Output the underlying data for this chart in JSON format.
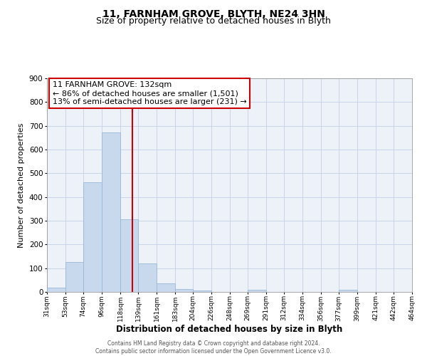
{
  "title": "11, FARNHAM GROVE, BLYTH, NE24 3HN",
  "subtitle": "Size of property relative to detached houses in Blyth",
  "xlabel": "Distribution of detached houses by size in Blyth",
  "ylabel": "Number of detached properties",
  "bar_edges": [
    31,
    53,
    74,
    96,
    118,
    139,
    161,
    183,
    204,
    226,
    248,
    269,
    291,
    312,
    334,
    356,
    377,
    399,
    421,
    442,
    464
  ],
  "bar_values": [
    18,
    127,
    463,
    672,
    305,
    120,
    37,
    13,
    5,
    0,
    0,
    8,
    0,
    0,
    0,
    0,
    8,
    0,
    0,
    0
  ],
  "bar_color": "#c8d8ed",
  "bar_edge_color": "#9ab8d8",
  "vline_x": 132,
  "vline_color": "#cc0000",
  "annotation_line1": "11 FARNHAM GROVE: 132sqm",
  "annotation_line2": "← 86% of detached houses are smaller (1,501)",
  "annotation_line3": "13% of semi-detached houses are larger (231) →",
  "ylim": [
    0,
    900
  ],
  "yticks": [
    0,
    100,
    200,
    300,
    400,
    500,
    600,
    700,
    800,
    900
  ],
  "tick_labels": [
    "31sqm",
    "53sqm",
    "74sqm",
    "96sqm",
    "118sqm",
    "139sqm",
    "161sqm",
    "183sqm",
    "204sqm",
    "226sqm",
    "248sqm",
    "269sqm",
    "291sqm",
    "312sqm",
    "334sqm",
    "356sqm",
    "377sqm",
    "399sqm",
    "421sqm",
    "442sqm",
    "464sqm"
  ],
  "grid_color": "#c8d4e8",
  "background_color": "#edf2f9",
  "footer_text": "Contains HM Land Registry data © Crown copyright and database right 2024.\nContains public sector information licensed under the Open Government Licence v3.0.",
  "title_fontsize": 10,
  "subtitle_fontsize": 9,
  "xlabel_fontsize": 8.5,
  "ylabel_fontsize": 8,
  "annot_fontsize": 8,
  "tick_fontsize": 6.5,
  "ytick_fontsize": 7.5
}
